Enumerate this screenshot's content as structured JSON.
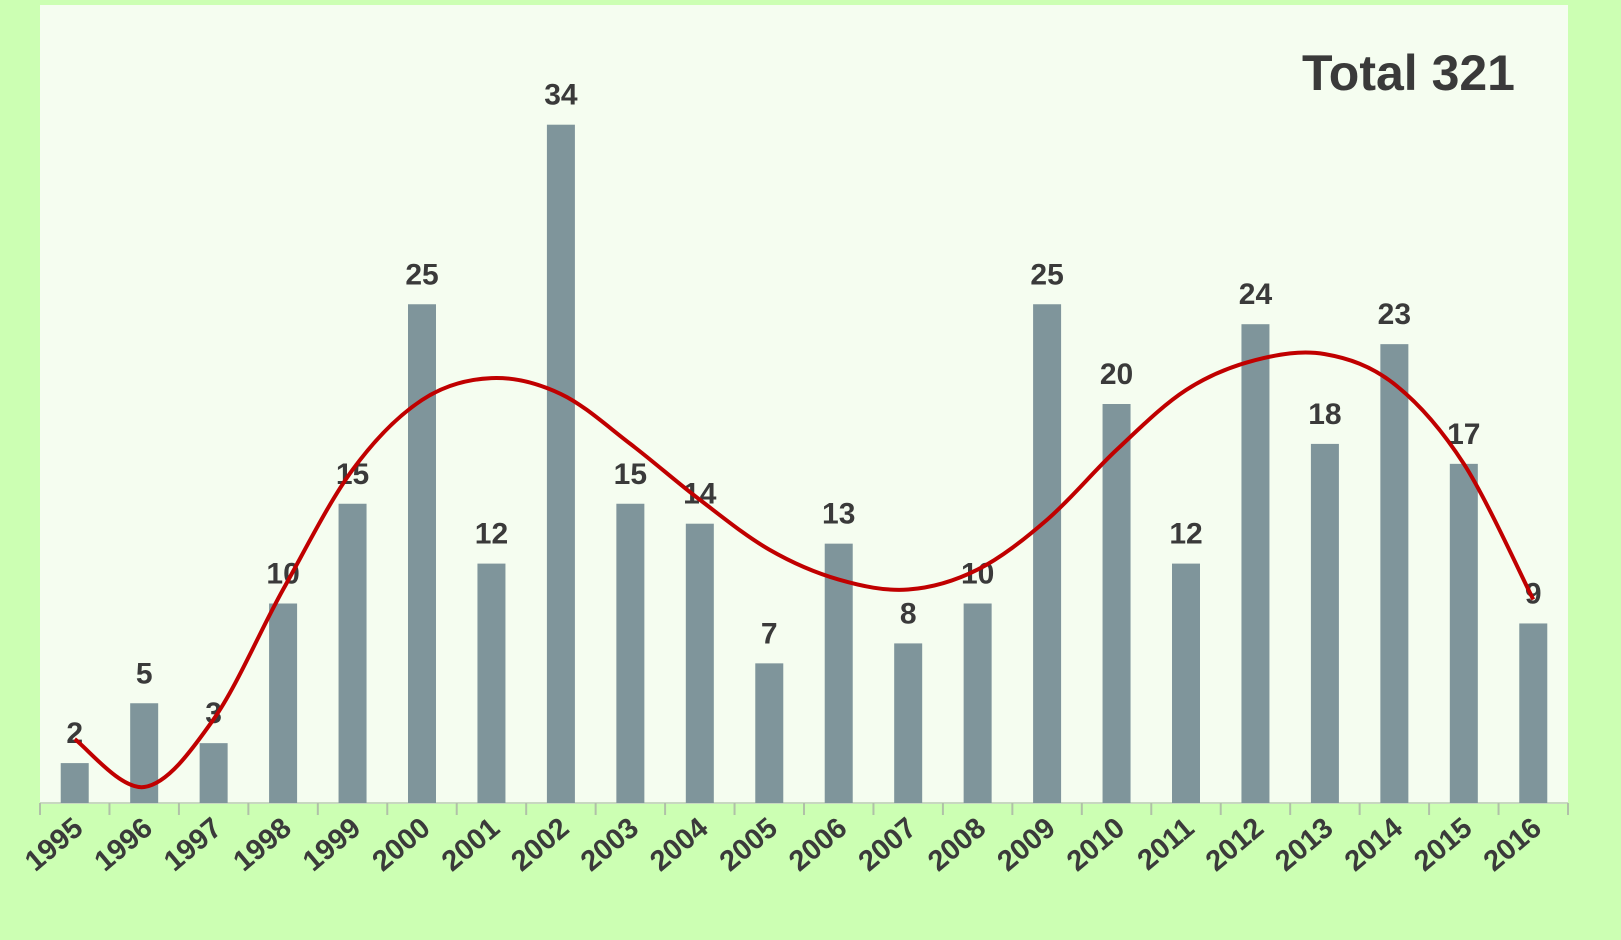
{
  "chart_data": {
    "type": "bar",
    "annotation": "Total  321",
    "categories": [
      "1995",
      "1996",
      "1997",
      "1998",
      "1999",
      "2000",
      "2001",
      "2002",
      "2003",
      "2004",
      "2005",
      "2006",
      "2007",
      "2008",
      "2009",
      "2010",
      "2011",
      "2012",
      "2013",
      "2014",
      "2015",
      "2016"
    ],
    "values": [
      2,
      5,
      3,
      10,
      15,
      25,
      12,
      34,
      15,
      14,
      7,
      13,
      8,
      10,
      25,
      20,
      12,
      24,
      18,
      23,
      17,
      9
    ],
    "color": "#7f959b",
    "trend": {
      "color": "#c00000",
      "values": [
        3.2,
        0.8,
        4.2,
        10.7,
        16.7,
        20.2,
        21.3,
        20.5,
        18,
        15.2,
        12.7,
        11.2,
        10.7,
        11.7,
        14.2,
        17.7,
        20.7,
        22.2,
        22.5,
        21,
        17,
        10.2
      ]
    },
    "ylim": [
      0,
      40
    ]
  }
}
